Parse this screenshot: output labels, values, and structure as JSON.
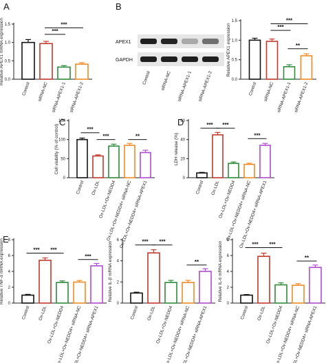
{
  "chart_data": [
    {
      "id": "A",
      "panel_label": "A",
      "type": "bar",
      "ylabel": "Relative APEX1 mRNA expression",
      "ylim": [
        0,
        1.5
      ],
      "yticks": [
        "0.0",
        "0.5",
        "1.0",
        "1.5"
      ],
      "categories": [
        "Control",
        "siRNA-NC",
        "siRNA-APEX1-1",
        "siRNA-APEX1-2"
      ],
      "values": [
        1.0,
        0.97,
        0.33,
        0.41
      ],
      "errors": [
        0.08,
        0.06,
        0.04,
        0.04
      ],
      "colors": [
        "#111111",
        "#c0392b",
        "#2e8b3a",
        "#f08a24"
      ],
      "significance": [
        {
          "from": 1,
          "to": 3,
          "label": "***",
          "level": 1.4
        },
        {
          "from": 1,
          "to": 2,
          "label": "***",
          "level": 1.22
        }
      ]
    },
    {
      "id": "Bbar",
      "panel_label": "",
      "type": "bar",
      "ylabel": "Relative APEX1 expression",
      "ylim": [
        0,
        1.5
      ],
      "yticks": [
        "0.0",
        "0.5",
        "1.0",
        "1.5"
      ],
      "categories": [
        "Control",
        "siRNA-NC",
        "siRNA-APEX1-1",
        "siRNA-APEX1-2"
      ],
      "values": [
        1.0,
        0.97,
        0.32,
        0.6
      ],
      "errors": [
        0.05,
        0.06,
        0.05,
        0.05
      ],
      "colors": [
        "#111111",
        "#c0392b",
        "#2e8b3a",
        "#f08a24"
      ],
      "significance": [
        {
          "from": 1,
          "to": 3,
          "label": "***",
          "level": 1.42
        },
        {
          "from": 1,
          "to": 2,
          "label": "***",
          "level": 1.25
        },
        {
          "from": 2,
          "to": 3,
          "label": "**",
          "level": 0.78
        }
      ]
    },
    {
      "id": "C",
      "panel_label": "C",
      "type": "bar",
      "ylabel": "Cell viability (% of control)",
      "ylim": [
        0,
        150
      ],
      "yticks": [
        "0",
        "50",
        "100",
        "150"
      ],
      "categories": [
        "Control",
        "Ox-LDL",
        "Ox-LDL+Ov-NEDD4",
        "Ox-LDL+Ov-NEDD4+ siRNA-NC",
        "Ox-LDL+Ov-NEDD4+ siRNA-APEX1"
      ],
      "values": [
        100,
        57,
        83,
        85,
        66
      ],
      "errors": [
        4,
        3,
        5,
        5,
        6
      ],
      "colors": [
        "#111111",
        "#c0392b",
        "#2e8b3a",
        "#f08a24",
        "#b04ad0"
      ],
      "significance": [
        {
          "from": 0,
          "to": 1,
          "label": "***",
          "level": 118
        },
        {
          "from": 1,
          "to": 2,
          "label": "***",
          "level": 100
        },
        {
          "from": 3,
          "to": 4,
          "label": "**",
          "level": 100
        }
      ]
    },
    {
      "id": "D",
      "panel_label": "D",
      "type": "bar",
      "ylabel": "LDH release (%)",
      "ylim": [
        0,
        60
      ],
      "yticks": [
        "0",
        "20",
        "40",
        "60"
      ],
      "categories": [
        "Control",
        "Ox-LDL",
        "Ox-LDL+Ov-NEDD4",
        "Ox-LDL+Ov-NEDD4+ siRNA-NC",
        "Ox-LDL+Ov-NEDD4+ siRNA-APEX1"
      ],
      "values": [
        5,
        45,
        15,
        14,
        34
      ],
      "errors": [
        0.6,
        2.5,
        1.5,
        1.2,
        2
      ],
      "colors": [
        "#111111",
        "#c0392b",
        "#2e8b3a",
        "#f08a24",
        "#b04ad0"
      ],
      "significance": [
        {
          "from": 0,
          "to": 1,
          "label": "***",
          "level": 52
        },
        {
          "from": 1,
          "to": 2,
          "label": "***",
          "level": 52
        },
        {
          "from": 3,
          "to": 4,
          "label": "***",
          "level": 41
        }
      ]
    },
    {
      "id": "E1",
      "panel_label": "E",
      "type": "bar",
      "ylabel": "Relative TNF-α mRNA expression",
      "ylim": [
        0,
        8
      ],
      "yticks": [
        "0",
        "2",
        "4",
        "6",
        "8"
      ],
      "categories": [
        "Control",
        "Ox-LDL",
        "Ox-LDL+Ov-NEDD4",
        "Ox-LDL+Ov-NEDD4+ siRNA-NC",
        "Ox-LDL+Ov-NEDD4+ siRNA-APEX1"
      ],
      "values": [
        1.0,
        5.4,
        2.6,
        2.65,
        4.7
      ],
      "errors": [
        0.1,
        0.3,
        0.2,
        0.2,
        0.3
      ],
      "colors": [
        "#111111",
        "#c0392b",
        "#2e8b3a",
        "#f08a24",
        "#b04ad0"
      ],
      "significance": [
        {
          "from": 0,
          "to": 1,
          "label": "***",
          "level": 6.3
        },
        {
          "from": 1,
          "to": 2,
          "label": "***",
          "level": 6.3
        },
        {
          "from": 3,
          "to": 4,
          "label": "***",
          "level": 5.5
        }
      ]
    },
    {
      "id": "E2",
      "panel_label": "",
      "type": "bar",
      "ylabel": "Relative IL-β mRNA expression",
      "ylim": [
        0,
        6
      ],
      "yticks": [
        "0",
        "2",
        "4",
        "6"
      ],
      "categories": [
        "Control",
        "Ox-LDL",
        "Ox-LDL+Ov-NEDD4",
        "Ox-LDL+Ov-NEDD4+ siRNA-NC",
        "Ox-LDL+Ov-NEDD4+ siRNA-APEX1"
      ],
      "values": [
        0.95,
        4.75,
        1.95,
        1.95,
        3.0
      ],
      "errors": [
        0.08,
        0.3,
        0.2,
        0.2,
        0.25
      ],
      "colors": [
        "#111111",
        "#c0392b",
        "#2e8b3a",
        "#f08a24",
        "#b04ad0"
      ],
      "significance": [
        {
          "from": 0,
          "to": 1,
          "label": "***",
          "level": 5.5
        },
        {
          "from": 1,
          "to": 2,
          "label": "***",
          "level": 5.5
        },
        {
          "from": 3,
          "to": 4,
          "label": "**",
          "level": 3.6
        }
      ]
    },
    {
      "id": "E3",
      "panel_label": "",
      "type": "bar",
      "ylabel": "Relative IL-6 mRNA expression",
      "ylim": [
        0,
        8
      ],
      "yticks": [
        "0",
        "2",
        "4",
        "6",
        "8"
      ],
      "categories": [
        "Control",
        "Ox-LDL",
        "Ox-LDL+Ov-NEDD4",
        "Ox-LDL+Ov-NEDD4+ siRNA-NC",
        "Ox-LDL+Ov-NEDD4+ siRNA-APEX1"
      ],
      "values": [
        1.0,
        5.9,
        2.3,
        2.25,
        4.5
      ],
      "errors": [
        0.08,
        0.4,
        0.25,
        0.2,
        0.3
      ],
      "colors": [
        "#111111",
        "#c0392b",
        "#2e8b3a",
        "#f08a24",
        "#b04ad0"
      ],
      "significance": [
        {
          "from": 0,
          "to": 1,
          "label": "***",
          "level": 7.0
        },
        {
          "from": 1,
          "to": 2,
          "label": "***",
          "level": 7.0
        },
        {
          "from": 3,
          "to": 4,
          "label": "**",
          "level": 5.3
        }
      ]
    }
  ],
  "blot": {
    "panel_label": "B",
    "rows": [
      "APEX1",
      "GAPDH"
    ],
    "lanes": [
      "Control",
      "siRNA-NC",
      "siRNA-APEX1-1",
      "siRNA-APEX1-2"
    ],
    "apex1_band_intensity": [
      1.0,
      0.97,
      0.32,
      0.6
    ]
  }
}
